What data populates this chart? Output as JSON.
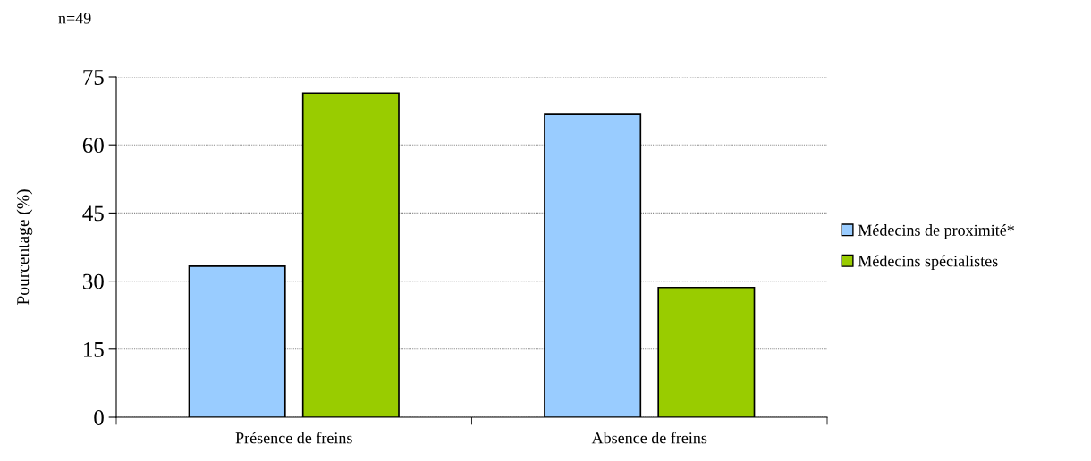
{
  "chart_data": {
    "type": "bar",
    "ylabel": "Pourcentage (%)",
    "annotations": [
      "n=49"
    ],
    "categories": [
      "Présence de freins",
      "Absence de freins"
    ],
    "series": [
      {
        "name": "Médecins de proximité*",
        "color": "#99ccff",
        "values": [
          33.3,
          66.7
        ]
      },
      {
        "name": "Médecins spécialistes",
        "color": "#99cc00",
        "values": [
          71.4,
          28.6
        ]
      }
    ],
    "ylim": [
      0,
      75
    ],
    "yticks": [
      0,
      15,
      30,
      45,
      60,
      75
    ],
    "grid": "y",
    "legend": "right"
  }
}
